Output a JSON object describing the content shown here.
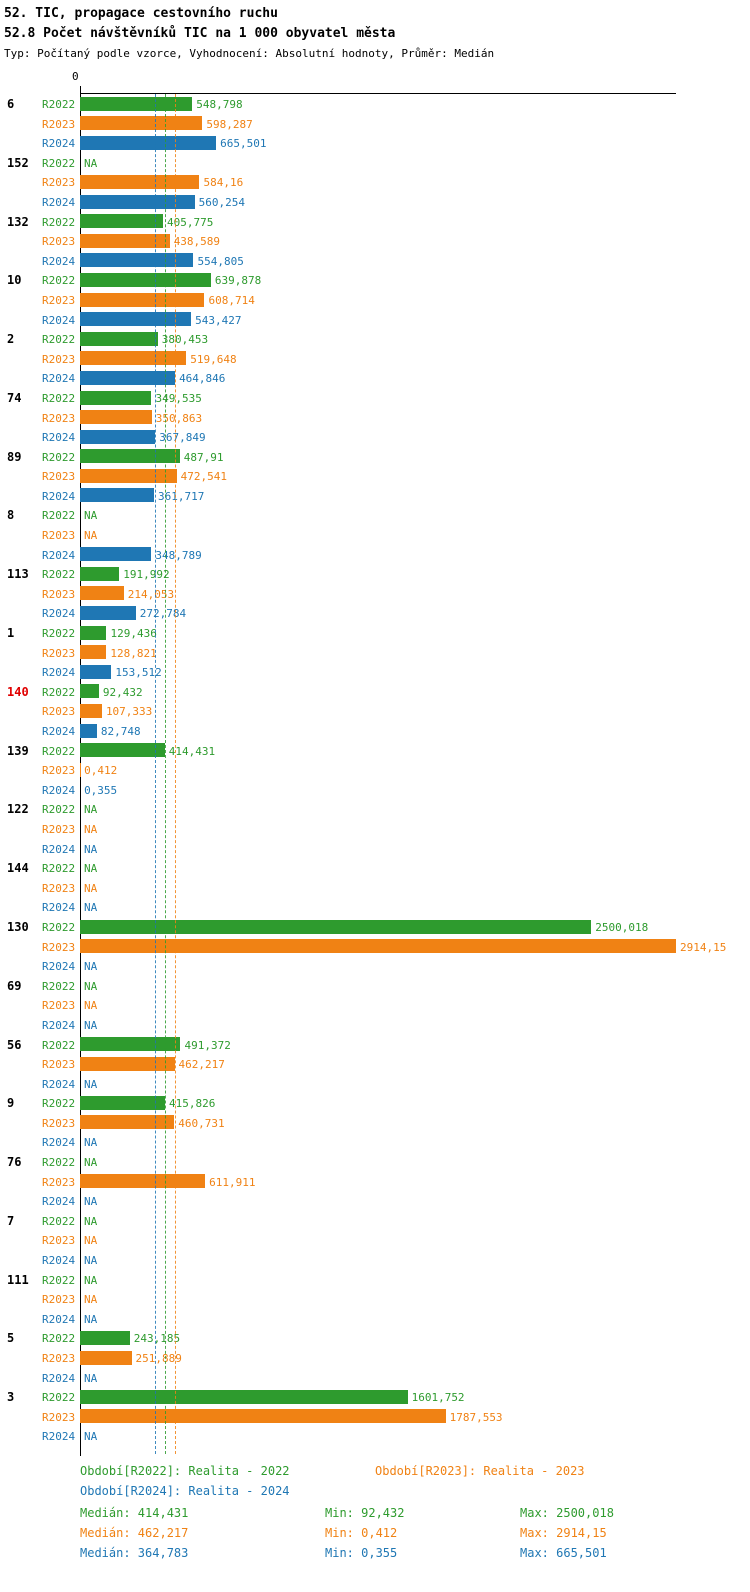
{
  "header": {
    "title": "52. TIC, propagace cestovního ruchu",
    "subtitle": "52.8 Počet návštěvníků TIC na 1 000 obyvatel města",
    "meta": "Typ: Počítaný podle vzorce, Vyhodnocení: Absolutní hodnoty, Průměr: Medián"
  },
  "axis": {
    "zero_label": "0"
  },
  "colors": {
    "r2022": "#2e9b2e",
    "r2023": "#f08214",
    "r2024": "#1f77b4",
    "axis": "#000000",
    "highlight_row_label": "#e00000"
  },
  "chart_data": {
    "type": "bar",
    "orientation": "horizontal",
    "title": "52.8 Počet návštěvníků TIC na 1 000 obyvatel města",
    "value_format": "czech_decimal_comma",
    "series": [
      "R2022",
      "R2023",
      "R2024"
    ],
    "series_colors": {
      "R2022": "#2e9b2e",
      "R2023": "#f08214",
      "R2024": "#1f77b4"
    },
    "xlim": [
      0,
      2914.15
    ],
    "grid": false,
    "medians": {
      "R2022": 414.431,
      "R2023": 462.217,
      "R2024": 364.783
    },
    "na_text": "NA",
    "rows": [
      {
        "id": "6",
        "highlight": false,
        "values": [
          "548,798",
          "598,287",
          "665,501"
        ]
      },
      {
        "id": "152",
        "highlight": false,
        "values": [
          "NA",
          "584,16",
          "560,254"
        ]
      },
      {
        "id": "132",
        "highlight": false,
        "values": [
          "405,775",
          "438,589",
          "554,805"
        ]
      },
      {
        "id": "10",
        "highlight": false,
        "values": [
          "639,878",
          "608,714",
          "543,427"
        ]
      },
      {
        "id": "2",
        "highlight": false,
        "values": [
          "380,453",
          "519,648",
          "464,846"
        ]
      },
      {
        "id": "74",
        "highlight": false,
        "values": [
          "349,535",
          "350,863",
          "367,849"
        ]
      },
      {
        "id": "89",
        "highlight": false,
        "values": [
          "487,91",
          "472,541",
          "361,717"
        ]
      },
      {
        "id": "8",
        "highlight": false,
        "values": [
          "NA",
          "NA",
          "348,789"
        ]
      },
      {
        "id": "113",
        "highlight": false,
        "values": [
          "191,992",
          "214,053",
          "272,784"
        ]
      },
      {
        "id": "1",
        "highlight": false,
        "values": [
          "129,436",
          "128,821",
          "153,512"
        ]
      },
      {
        "id": "140",
        "highlight": true,
        "values": [
          "92,432",
          "107,333",
          "82,748"
        ]
      },
      {
        "id": "139",
        "highlight": false,
        "values": [
          "414,431",
          "0,412",
          "0,355"
        ]
      },
      {
        "id": "122",
        "highlight": false,
        "values": [
          "NA",
          "NA",
          "NA"
        ]
      },
      {
        "id": "144",
        "highlight": false,
        "values": [
          "NA",
          "NA",
          "NA"
        ]
      },
      {
        "id": "130",
        "highlight": false,
        "values": [
          "2500,018",
          "2914,15",
          "NA"
        ]
      },
      {
        "id": "69",
        "highlight": false,
        "values": [
          "NA",
          "NA",
          "NA"
        ]
      },
      {
        "id": "56",
        "highlight": false,
        "values": [
          "491,372",
          "462,217",
          "NA"
        ]
      },
      {
        "id": "9",
        "highlight": false,
        "values": [
          "415,826",
          "460,731",
          "NA"
        ]
      },
      {
        "id": "76",
        "highlight": false,
        "values": [
          "NA",
          "611,911",
          "NA"
        ]
      },
      {
        "id": "7",
        "highlight": false,
        "values": [
          "NA",
          "NA",
          "NA"
        ]
      },
      {
        "id": "111",
        "highlight": false,
        "values": [
          "NA",
          "NA",
          "NA"
        ]
      },
      {
        "id": "5",
        "highlight": false,
        "values": [
          "243,185",
          "251,889",
          "NA"
        ]
      },
      {
        "id": "3",
        "highlight": false,
        "values": [
          "1601,752",
          "1787,553",
          "NA"
        ]
      }
    ]
  },
  "legend": {
    "items": [
      {
        "series": "R2022",
        "label": "Období[R2022]: Realita - 2022"
      },
      {
        "series": "R2023",
        "label": "Období[R2023]: Realita - 2023"
      },
      {
        "series": "R2024",
        "label": "Období[R2024]: Realita - 2024"
      }
    ]
  },
  "stats": {
    "rows": [
      {
        "series": "R2022",
        "median": "Medián: 414,431",
        "min": "Min: 92,432",
        "max": "Max: 2500,018"
      },
      {
        "series": "R2023",
        "median": "Medián: 462,217",
        "min": "Min: 0,412",
        "max": "Max: 2914,15"
      },
      {
        "series": "R2024",
        "median": "Medián: 364,783",
        "min": "Min: 0,355",
        "max": "Max: 665,501"
      }
    ]
  }
}
